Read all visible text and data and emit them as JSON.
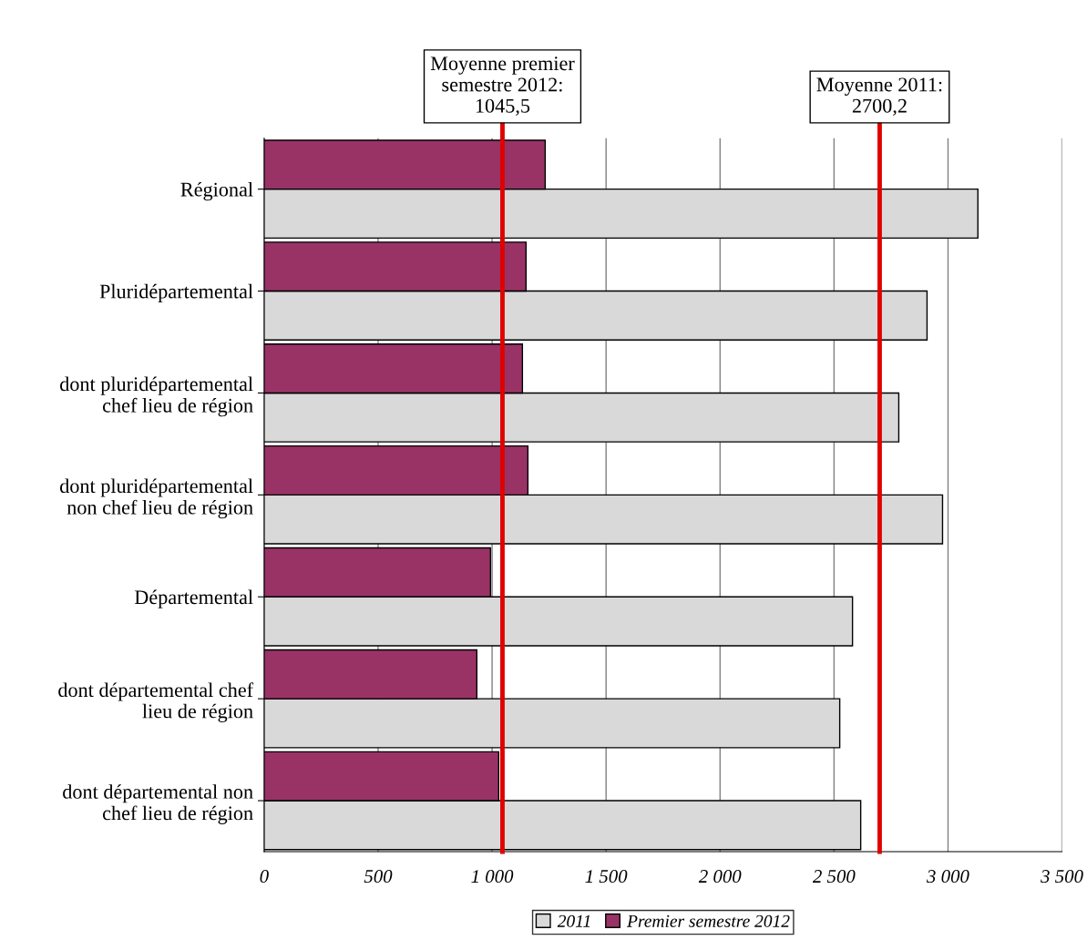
{
  "chart_data": {
    "type": "bar",
    "orientation": "horizontal",
    "categories": [
      "Régional",
      "Pluridépartemental",
      "dont pluridépartemental\nchef lieu de région",
      "dont pluridépartemental\nnon chef lieu de région",
      "Départemental",
      "dont départemental chef\nlieu de région",
      "dont départemental non\nchef lieu de région"
    ],
    "series": [
      {
        "name": "2011",
        "color": "#d9d9d9",
        "values": [
          3131,
          2908,
          2784,
          2976,
          2581,
          2525,
          2617
        ]
      },
      {
        "name": "Premier semestre 2012",
        "color": "#993366",
        "values": [
          1233,
          1149,
          1133,
          1157,
          993,
          933,
          1029
        ]
      }
    ],
    "xlim": [
      0,
      3500
    ],
    "xticks": [
      0,
      500,
      {
        "value": 1000,
        "label": "1 000"
      },
      {
        "value": 1500,
        "label": "1 500"
      },
      {
        "value": 2000,
        "label": "2 000"
      },
      {
        "value": 2500,
        "label": "2 500"
      },
      {
        "value": 3000,
        "label": "3 000"
      },
      {
        "value": 3500,
        "label": "3 500"
      }
    ],
    "ref_lines": [
      {
        "axis": "x",
        "value": 1045.5,
        "label": "Moyenne premier\nsemestre 2012:\n1045,5",
        "color": "#e00000"
      },
      {
        "axis": "x",
        "value": 2700.2,
        "label": "Moyenne 2011:\n2700,2",
        "color": "#e00000"
      }
    ],
    "grid": "x",
    "legend": "bottom"
  }
}
